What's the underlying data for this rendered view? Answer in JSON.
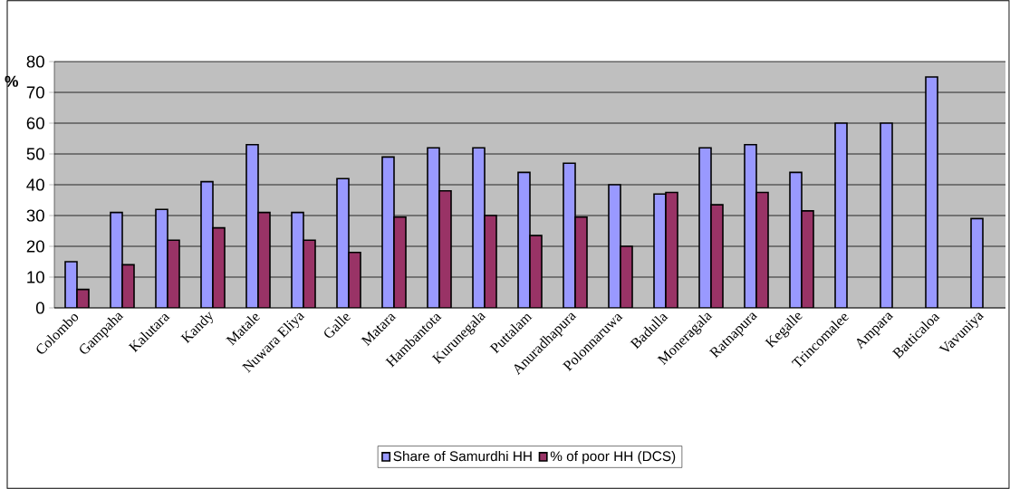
{
  "chart_data": {
    "type": "bar",
    "ylabel": "%",
    "categories": [
      "Colombo",
      "Gampaha",
      "Kalutara",
      "Kandy",
      "Matale",
      "Nuwara Eliya",
      "Galle",
      "Matara",
      "Hambantota",
      "Kurunegala",
      "Puttalam",
      "Anuradhapura",
      "Polonnaruwa",
      "Badulla",
      "Moneragala",
      "Ratnapura",
      "Kegalle",
      "Trincomalee",
      "Ampara",
      "Batticaloa",
      "Vavuniya"
    ],
    "series": [
      {
        "name": "Share of Samurdhi HH",
        "color": "#9999ff",
        "values": [
          15,
          31,
          32,
          41,
          53,
          31,
          42,
          49,
          52,
          52,
          44,
          47,
          40,
          37,
          52,
          53,
          44,
          60,
          60,
          75,
          29
        ]
      },
      {
        "name": "% of poor HH (DCS)",
        "color": "#993366",
        "values": [
          6,
          14,
          22,
          26,
          31,
          22,
          18,
          29.5,
          38,
          30,
          23.5,
          29.5,
          20,
          37.5,
          33.5,
          37.5,
          31.5,
          null,
          null,
          null,
          null
        ]
      }
    ],
    "ylim": [
      0,
      80
    ],
    "yticks": [
      0,
      10,
      20,
      30,
      40,
      50,
      60,
      70,
      80
    ],
    "grid": "y",
    "legend": "bottom"
  }
}
